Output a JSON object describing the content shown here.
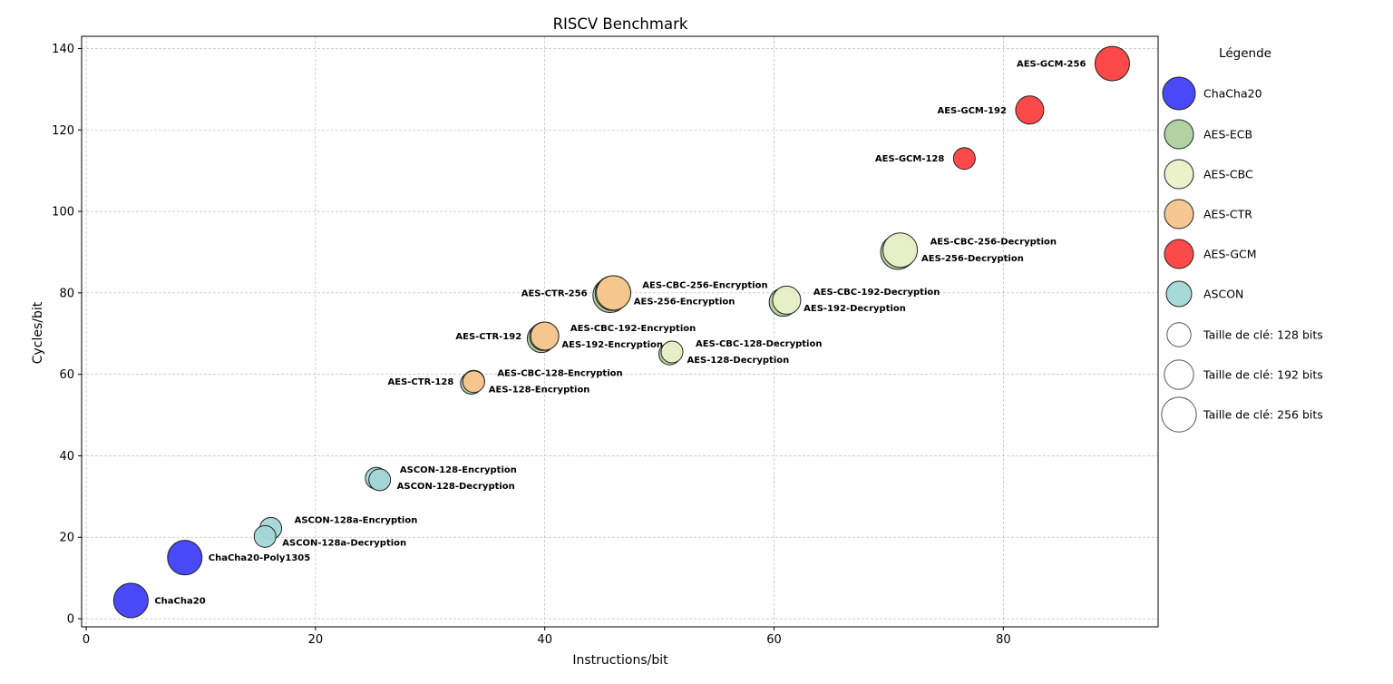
{
  "chart_data": {
    "type": "scatter",
    "title": "RISCV Benchmark",
    "xlabel": "Instructions/bit",
    "ylabel": "Cycles/bit",
    "xlim": [
      -0.4,
      93.5
    ],
    "ylim": [
      -2,
      143
    ],
    "x_ticks": [
      0,
      20,
      40,
      60,
      80
    ],
    "y_ticks": [
      0,
      20,
      40,
      60,
      80,
      100,
      120,
      140
    ],
    "grid": true,
    "legend_title": "Légende",
    "legend_position": "right, outside plot",
    "colors": {
      "ChaCha20": "#3f3ff8",
      "AES-ECB": "#aed09f",
      "AES-CBC": "#e9f0c8",
      "AES-CTR": "#f5c48c",
      "AES-GCM": "#fd3f3f",
      "ASCON": "#a2d7d7"
    },
    "legend_entries": [
      {
        "label": "ChaCha20",
        "family": "ChaCha20",
        "kind": "color"
      },
      {
        "label": "AES-ECB",
        "family": "AES-ECB",
        "kind": "color"
      },
      {
        "label": "AES-CBC",
        "family": "AES-CBC",
        "kind": "color"
      },
      {
        "label": "AES-CTR",
        "family": "AES-CTR",
        "kind": "color"
      },
      {
        "label": "AES-GCM",
        "family": "AES-GCM",
        "kind": "color"
      },
      {
        "label": "ASCON",
        "family": "ASCON",
        "kind": "color"
      },
      {
        "label": "Taille de clé: 128 bits",
        "key_size": 128,
        "kind": "size"
      },
      {
        "label": "Taille de clé: 192 bits",
        "key_size": 192,
        "kind": "size"
      },
      {
        "label": "Taille de clé: 256 bits",
        "key_size": 256,
        "kind": "size"
      }
    ],
    "points": [
      {
        "label": "ChaCha20",
        "family": "ChaCha20",
        "key_size": 256,
        "x": 3.9,
        "y": 4.5,
        "label_side": "right"
      },
      {
        "label": "ChaCha20-Poly1305",
        "family": "ChaCha20",
        "key_size": 256,
        "x": 8.6,
        "y": 15,
        "label_side": "right"
      },
      {
        "label": "ASCON-128a-Encryption",
        "family": "ASCON",
        "key_size": 128,
        "x": 16.1,
        "y": 22.2,
        "label_side": "right"
      },
      {
        "label": "ASCON-128a-Decryption",
        "family": "ASCON",
        "key_size": 128,
        "x": 15.6,
        "y": 20.2,
        "label_side": "right"
      },
      {
        "label": "ASCON-128-Encryption",
        "family": "ASCON",
        "key_size": 128,
        "x": 25.3,
        "y": 34.5,
        "label_side": "right"
      },
      {
        "label": "ASCON-128-Decryption",
        "family": "ASCON",
        "key_size": 128,
        "x": 25.6,
        "y": 34.1,
        "label_side": "right"
      },
      {
        "label": "AES-128-Encryption",
        "family": "AES-ECB",
        "key_size": 128,
        "x": 33.6,
        "y": 57.8,
        "label_side": "right"
      },
      {
        "label": "AES-CBC-128-Encryption",
        "family": "AES-CBC",
        "key_size": 128,
        "x": 33.8,
        "y": 58.3,
        "label_side": "right"
      },
      {
        "label": "AES-CTR-128",
        "family": "AES-CTR",
        "key_size": 128,
        "x": 33.8,
        "y": 58.2,
        "label_side": "left"
      },
      {
        "label": "AES-192-Encryption",
        "family": "AES-ECB",
        "key_size": 192,
        "x": 39.7,
        "y": 68.8,
        "label_side": "right"
      },
      {
        "label": "AES-CBC-192-Encryption",
        "family": "AES-CBC",
        "key_size": 192,
        "x": 39.9,
        "y": 69.3,
        "label_side": "right"
      },
      {
        "label": "AES-CTR-192",
        "family": "AES-CTR",
        "key_size": 192,
        "x": 40,
        "y": 69.4,
        "label_side": "left"
      },
      {
        "label": "AES-256-Encryption",
        "family": "AES-ECB",
        "key_size": 256,
        "x": 45.7,
        "y": 79.4,
        "label_side": "right"
      },
      {
        "label": "AES-CBC-256-Encryption",
        "family": "AES-CBC",
        "key_size": 256,
        "x": 45.9,
        "y": 79.9,
        "label_side": "right"
      },
      {
        "label": "AES-CTR-256",
        "family": "AES-CTR",
        "key_size": 256,
        "x": 46,
        "y": 80,
        "label_side": "left"
      },
      {
        "label": "AES-128-Decryption",
        "family": "AES-ECB",
        "key_size": 128,
        "x": 50.9,
        "y": 65,
        "label_side": "right"
      },
      {
        "label": "AES-CBC-128-Decryption",
        "family": "AES-CBC",
        "key_size": 128,
        "x": 51.1,
        "y": 65.5,
        "label_side": "right"
      },
      {
        "label": "AES-192-Decryption",
        "family": "AES-ECB",
        "key_size": 192,
        "x": 60.8,
        "y": 77.7,
        "label_side": "right"
      },
      {
        "label": "AES-CBC-192-Decryption",
        "family": "AES-CBC",
        "key_size": 192,
        "x": 61.1,
        "y": 78.2,
        "label_side": "right"
      },
      {
        "label": "AES-256-Decryption",
        "family": "AES-ECB",
        "key_size": 256,
        "x": 70.8,
        "y": 90,
        "label_side": "right"
      },
      {
        "label": "AES-CBC-256-Decryption",
        "family": "AES-CBC",
        "key_size": 256,
        "x": 71,
        "y": 90.5,
        "label_side": "right"
      },
      {
        "label": "AES-GCM-128",
        "family": "AES-GCM",
        "key_size": 128,
        "x": 76.6,
        "y": 113,
        "label_side": "left"
      },
      {
        "label": "AES-GCM-192",
        "family": "AES-GCM",
        "key_size": 192,
        "x": 82.3,
        "y": 124.9,
        "label_side": "left"
      },
      {
        "label": "AES-GCM-256",
        "family": "AES-GCM",
        "key_size": 256,
        "x": 89.5,
        "y": 136.3,
        "label_side": "left"
      }
    ]
  }
}
